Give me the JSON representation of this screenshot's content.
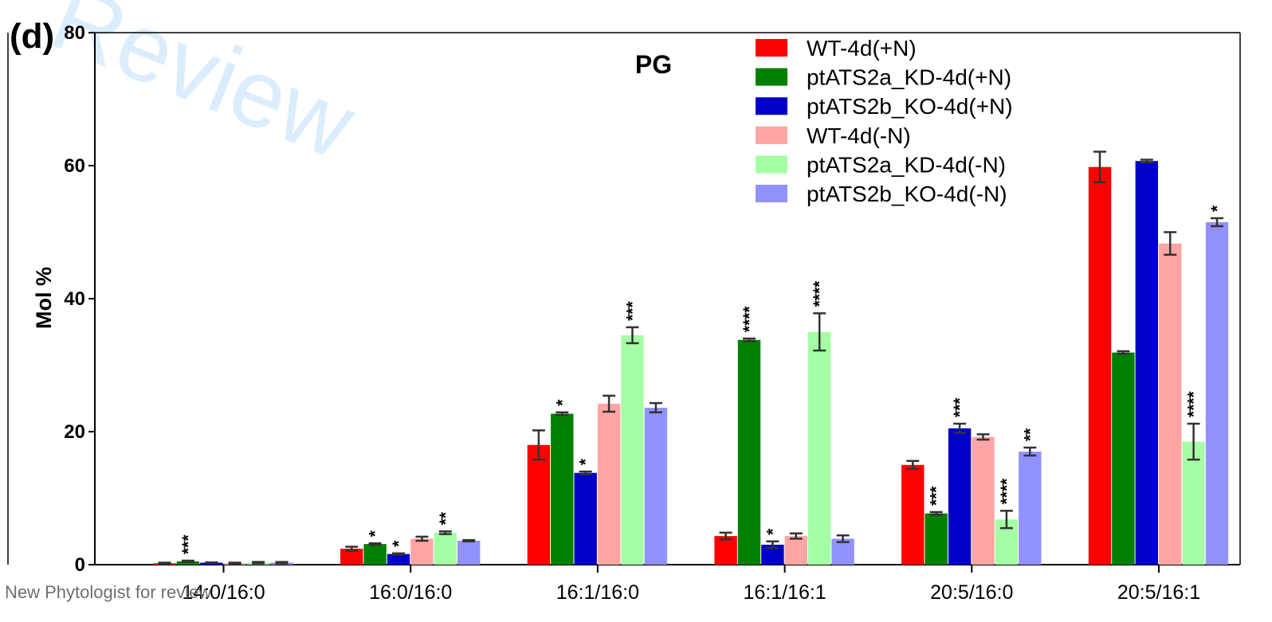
{
  "panel_label": "(d)",
  "watermark": "Review",
  "footer": "New Phytologist for review",
  "chart_data": {
    "type": "bar",
    "title": "PG",
    "ylabel": "Mol %",
    "xlabel": "",
    "ylim": [
      0,
      80
    ],
    "yticks": [
      0,
      20,
      40,
      60,
      80
    ],
    "grid": false,
    "legend_position": "top-right",
    "categories": [
      "14:0/16:0",
      "16:0/16:0",
      "16:1/16:0",
      "16:1/16:1",
      "20:5/16:0",
      "20:5/16:1"
    ],
    "series": [
      {
        "name": "WT-4d(+N)",
        "color": "#ff0000",
        "values": [
          0.2,
          2.4,
          18.0,
          4.3,
          15.0,
          59.8
        ],
        "errors": [
          0.1,
          0.3,
          2.2,
          0.5,
          0.6,
          2.3
        ],
        "stars": [
          "",
          "",
          "",
          "",
          "",
          ""
        ]
      },
      {
        "name": "ptATS2a_KD-4d(+N)",
        "color": "#008000",
        "values": [
          0.5,
          3.1,
          22.7,
          33.8,
          7.7,
          31.9
        ],
        "errors": [
          0.1,
          0.1,
          0.2,
          0.2,
          0.2,
          0.2
        ],
        "stars": [
          "***",
          "*",
          "*",
          "****",
          "***",
          ""
        ]
      },
      {
        "name": "ptATS2b_KO-4d(+N)",
        "color": "#0000c8",
        "values": [
          0.3,
          1.6,
          13.8,
          3.0,
          20.5,
          60.7
        ],
        "errors": [
          0.05,
          0.1,
          0.2,
          0.5,
          0.7,
          0.2
        ],
        "stars": [
          "",
          "*",
          "*",
          "*",
          "***",
          ""
        ]
      },
      {
        "name": "WT-4d(-N)",
        "color": "#ffa5a5",
        "values": [
          0.2,
          3.9,
          24.2,
          4.3,
          19.2,
          48.3
        ],
        "errors": [
          0.1,
          0.3,
          1.2,
          0.4,
          0.4,
          1.7
        ],
        "stars": [
          "",
          "",
          "",
          "",
          "",
          ""
        ]
      },
      {
        "name": "ptATS2a_KD-4d(-N)",
        "color": "#a5ffa5",
        "values": [
          0.3,
          4.8,
          34.5,
          35.0,
          6.8,
          18.5
        ],
        "errors": [
          0.1,
          0.2,
          1.2,
          2.8,
          1.3,
          2.7
        ],
        "stars": [
          "",
          "**",
          "***",
          "****",
          "****",
          "****"
        ]
      },
      {
        "name": "ptATS2b_KO-4d(-N)",
        "color": "#9191ff",
        "values": [
          0.3,
          3.6,
          23.6,
          3.9,
          17.0,
          51.5
        ],
        "errors": [
          0.1,
          0.1,
          0.7,
          0.5,
          0.6,
          0.6
        ],
        "stars": [
          "",
          "",
          "",
          "",
          "**",
          "*"
        ]
      }
    ]
  }
}
